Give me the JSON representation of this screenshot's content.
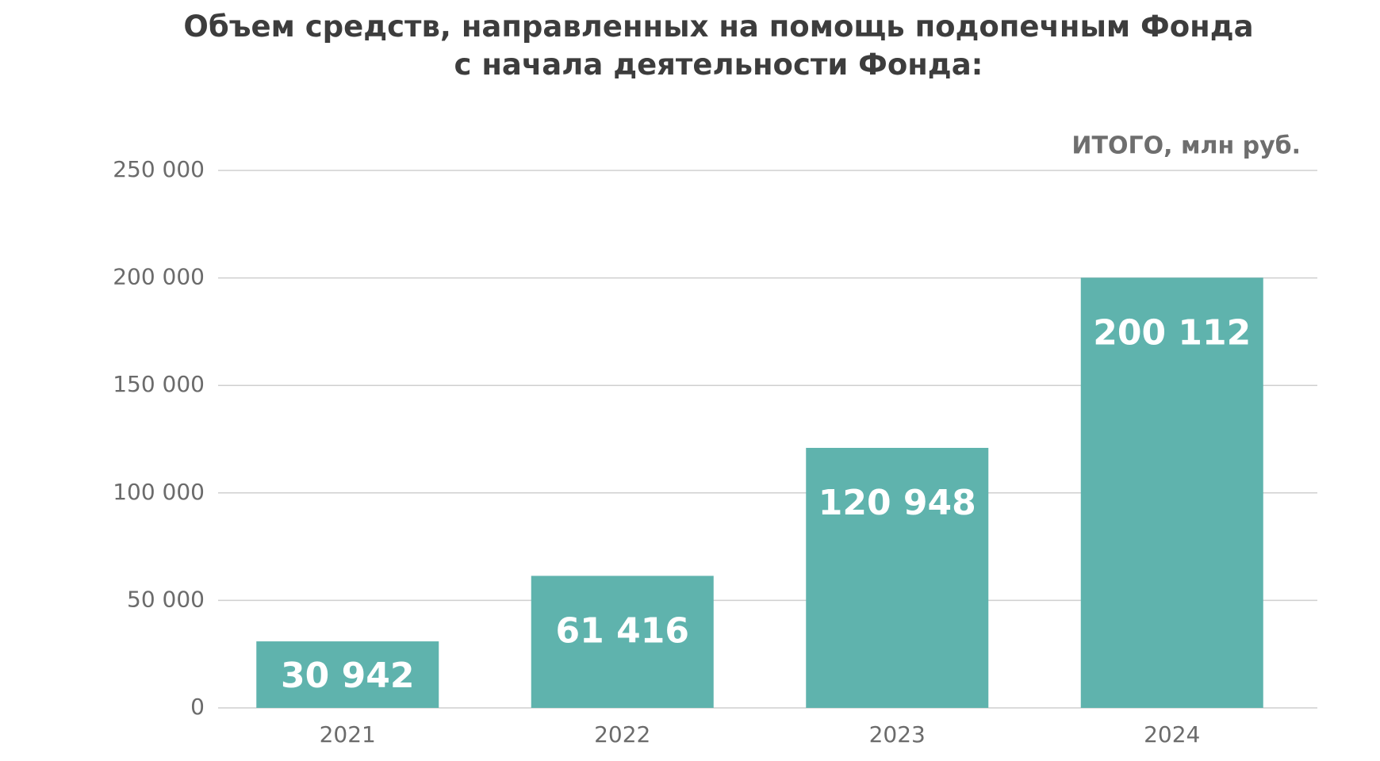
{
  "chart_data": {
    "type": "bar",
    "title": "Объем средств, направленных на помощь подопечным Фонда\nс начала деятельности Фонда:",
    "subtitle": "ИТОГО, млн руб.",
    "categories": [
      "2021",
      "2022",
      "2023",
      "2024"
    ],
    "values": [
      30942,
      61416,
      120948,
      200112
    ],
    "value_labels": [
      "30 942",
      "61 416",
      "120 948",
      "200 112"
    ],
    "color": "#5fb3ad",
    "ylim": [
      0,
      250000
    ],
    "yticks": [
      0,
      {
        "value": 50000,
        "label": "50 000"
      },
      {
        "value": 100000,
        "label": "100 000"
      },
      {
        "value": 150000,
        "label": "150 000"
      },
      {
        "value": 200000,
        "label": "200 000"
      },
      {
        "value": 250000,
        "label": "250 000"
      }
    ],
    "grid": true
  }
}
